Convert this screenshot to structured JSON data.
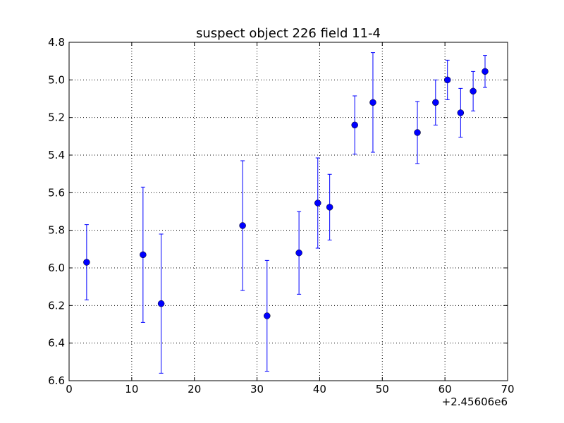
{
  "chart_data": {
    "type": "errorbar",
    "title": "suspect object 226 field 11-4",
    "x_offset_label": "+2.45606e6",
    "x": [
      2.8,
      11.8,
      14.7,
      27.7,
      31.6,
      36.7,
      39.7,
      41.6,
      45.6,
      48.5,
      55.6,
      58.5,
      60.4,
      62.5,
      64.5,
      66.4
    ],
    "series": [
      {
        "color": "#0000ff",
        "values": [
          5.97,
          5.93,
          6.19,
          5.775,
          6.255,
          5.92,
          5.655,
          5.677,
          5.24,
          5.12,
          5.28,
          5.12,
          5.0,
          5.175,
          5.06,
          4.955
        ],
        "errors": [
          0.2,
          0.36,
          0.37,
          0.345,
          0.295,
          0.22,
          0.24,
          0.175,
          0.155,
          0.265,
          0.165,
          0.12,
          0.105,
          0.13,
          0.105,
          0.085
        ]
      }
    ],
    "xlim": [
      0,
      70
    ],
    "xticks": [
      0,
      10,
      20,
      30,
      40,
      50,
      60,
      70
    ],
    "ylim": [
      6.6,
      4.8
    ],
    "yticks": [
      4.8,
      {
        "value": 5,
        "label": "5.0"
      },
      5.2,
      5.4,
      5.6,
      5.8,
      {
        "value": 6,
        "label": "6.0"
      },
      6.2,
      6.4,
      6.6
    ],
    "grid": true,
    "y_inverted": true
  }
}
